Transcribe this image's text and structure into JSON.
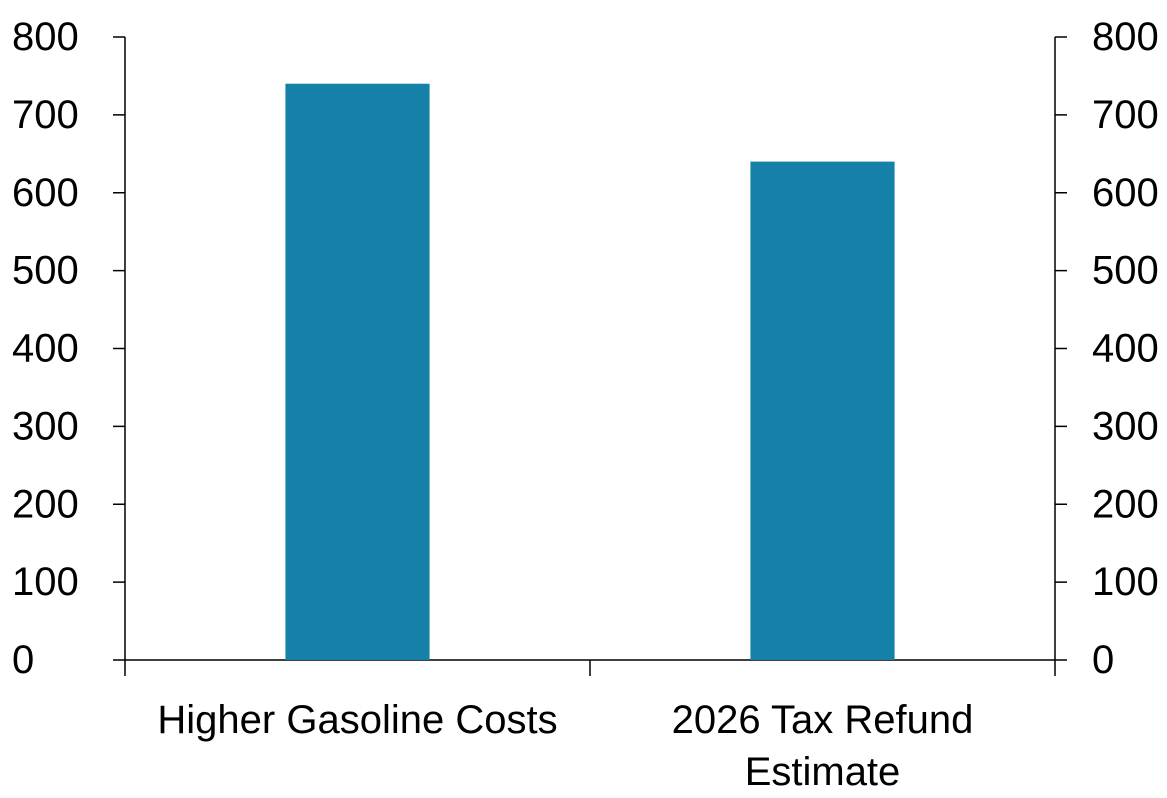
{
  "chart_data": {
    "type": "bar",
    "title": "",
    "xlabel": "",
    "ylabel": "",
    "categories": [
      [
        "Higher Gasoline Costs"
      ],
      [
        "2026 Tax Refund",
        "Estimate"
      ]
    ],
    "values": [
      740,
      640
    ],
    "ylim": [
      0,
      800
    ],
    "yticks": [
      "0",
      "100",
      "200",
      "300",
      "400",
      "500",
      "600",
      "700",
      "800"
    ],
    "y_axis_right": true,
    "grid": false,
    "legend": "none",
    "bar_color": "#1580A8",
    "axis_color": "#000000"
  }
}
